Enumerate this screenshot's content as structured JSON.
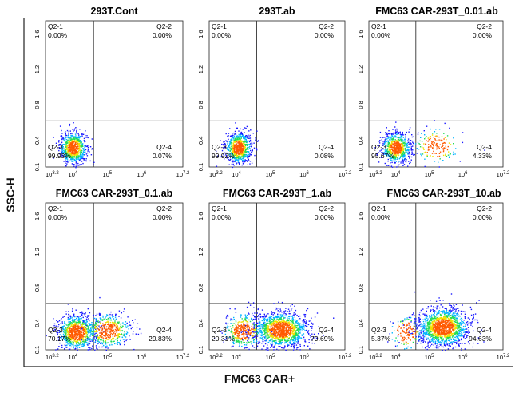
{
  "figure": {
    "xlabel": "FMC63 CAR+",
    "ylabel": "SSC-H"
  },
  "colors": {
    "frame": "#222222",
    "gate": "#333333",
    "density": [
      "#1a1aff",
      "#00b4ff",
      "#22dd55",
      "#f2e000",
      "#ff5a00"
    ]
  },
  "chart_data": [
    {
      "type": "scatter",
      "title": "293T.Cont",
      "x_ticks": [
        "10^3.2",
        "10^4",
        "10^5",
        "10^6",
        "10^7.2"
      ],
      "y_ticks": [
        "0.1",
        "0.4",
        "0.8",
        "1.2",
        "1.6"
      ],
      "quadrants": [
        {
          "name": "Q2-1",
          "percent": "0.00%"
        },
        {
          "name": "Q2-2",
          "percent": "0.00%"
        },
        {
          "name": "Q2-3",
          "percent": "99.93%"
        },
        {
          "name": "Q2-4",
          "percent": "0.07%"
        }
      ],
      "gate_x_log": 4.6,
      "gate_y": 0.62,
      "populations": [
        {
          "x_log_center": 4.0,
          "x_log_sd": 0.2,
          "y_center": 0.32,
          "y_sd": 0.09,
          "count": 750,
          "density_scale": 0.09
        }
      ]
    },
    {
      "type": "scatter",
      "title": "293T.ab",
      "x_ticks": [
        "10^3.2",
        "10^4",
        "10^5",
        "10^6",
        "10^7.2"
      ],
      "y_ticks": [
        "0.1",
        "0.4",
        "0.8",
        "1.2",
        "1.6"
      ],
      "quadrants": [
        {
          "name": "Q2-1",
          "percent": "0.00%"
        },
        {
          "name": "Q2-2",
          "percent": "0.00%"
        },
        {
          "name": "Q2-3",
          "percent": "99.92%"
        },
        {
          "name": "Q2-4",
          "percent": "0.08%"
        }
      ],
      "gate_x_log": 4.6,
      "gate_y": 0.62,
      "populations": [
        {
          "x_log_center": 4.05,
          "x_log_sd": 0.2,
          "y_center": 0.32,
          "y_sd": 0.09,
          "count": 750,
          "density_scale": 0.09
        }
      ]
    },
    {
      "type": "scatter",
      "title": "FMC63 CAR-293T_0.01.ab",
      "x_ticks": [
        "10^3.2",
        "10^4",
        "10^5",
        "10^6",
        "10^7.2"
      ],
      "y_ticks": [
        "0.1",
        "0.4",
        "0.8",
        "1.2",
        "1.6"
      ],
      "quadrants": [
        {
          "name": "Q2-1",
          "percent": "0.00%"
        },
        {
          "name": "Q2-2",
          "percent": "0.00%"
        },
        {
          "name": "Q2-3",
          "percent": "95.67%"
        },
        {
          "name": "Q2-4",
          "percent": "4.33%"
        }
      ],
      "gate_x_log": 4.6,
      "gate_y": 0.62,
      "populations": [
        {
          "x_log_center": 4.0,
          "x_log_sd": 0.22,
          "y_center": 0.32,
          "y_sd": 0.09,
          "count": 700,
          "density_scale": 0.09
        },
        {
          "x_log_center": 5.2,
          "x_log_sd": 0.35,
          "y_center": 0.34,
          "y_sd": 0.11,
          "count": 170,
          "density_scale": 0.25
        }
      ]
    },
    {
      "type": "scatter",
      "title": "FMC63 CAR-293T_0.1.ab",
      "x_ticks": [
        "10^3.2",
        "10^4",
        "10^5",
        "10^6",
        "10^7.2"
      ],
      "y_ticks": [
        "0.1",
        "0.4",
        "0.8",
        "1.2",
        "1.6"
      ],
      "quadrants": [
        {
          "name": "Q2-1",
          "percent": "0.00%"
        },
        {
          "name": "Q2-2",
          "percent": "0.00%"
        },
        {
          "name": "Q2-3",
          "percent": "70.17%"
        },
        {
          "name": "Q2-4",
          "percent": "29.83%"
        }
      ],
      "gate_x_log": 4.6,
      "gate_y": 0.62,
      "populations": [
        {
          "x_log_center": 4.1,
          "x_log_sd": 0.28,
          "y_center": 0.3,
          "y_sd": 0.1,
          "count": 850,
          "density_scale": 0.12
        },
        {
          "x_log_center": 5.0,
          "x_log_sd": 0.35,
          "y_center": 0.32,
          "y_sd": 0.1,
          "count": 500,
          "density_scale": 0.15
        }
      ]
    },
    {
      "type": "scatter",
      "title": "FMC63 CAR-293T_1.ab",
      "x_ticks": [
        "10^3.2",
        "10^4",
        "10^5",
        "10^6",
        "10^7.2"
      ],
      "y_ticks": [
        "0.1",
        "0.4",
        "0.8",
        "1.2",
        "1.6"
      ],
      "quadrants": [
        {
          "name": "Q2-1",
          "percent": "0.00%"
        },
        {
          "name": "Q2-2",
          "percent": "0.00%"
        },
        {
          "name": "Q2-3",
          "percent": "20.31%"
        },
        {
          "name": "Q2-4",
          "percent": "79.69%"
        }
      ],
      "gate_x_log": 4.6,
      "gate_y": 0.62,
      "populations": [
        {
          "x_log_center": 4.2,
          "x_log_sd": 0.3,
          "y_center": 0.32,
          "y_sd": 0.1,
          "count": 400,
          "density_scale": 0.18
        },
        {
          "x_log_center": 5.3,
          "x_log_sd": 0.4,
          "y_center": 0.33,
          "y_sd": 0.1,
          "count": 1300,
          "density_scale": 0.12
        }
      ]
    },
    {
      "type": "scatter",
      "title": "FMC63 CAR-293T_10.ab",
      "x_ticks": [
        "10^3.2",
        "10^4",
        "10^5",
        "10^6",
        "10^7.2"
      ],
      "y_ticks": [
        "0.1",
        "0.4",
        "0.8",
        "1.2",
        "1.6"
      ],
      "quadrants": [
        {
          "name": "Q2-1",
          "percent": "0.00%"
        },
        {
          "name": "Q2-2",
          "percent": "0.00%"
        },
        {
          "name": "Q2-3",
          "percent": "5.37%"
        },
        {
          "name": "Q2-4",
          "percent": "94.63%"
        }
      ],
      "gate_x_log": 4.6,
      "gate_y": 0.62,
      "populations": [
        {
          "x_log_center": 4.3,
          "x_log_sd": 0.25,
          "y_center": 0.3,
          "y_sd": 0.1,
          "count": 150,
          "density_scale": 0.3
        },
        {
          "x_log_center": 5.4,
          "x_log_sd": 0.38,
          "y_center": 0.36,
          "y_sd": 0.11,
          "count": 1400,
          "density_scale": 0.1
        }
      ]
    }
  ]
}
